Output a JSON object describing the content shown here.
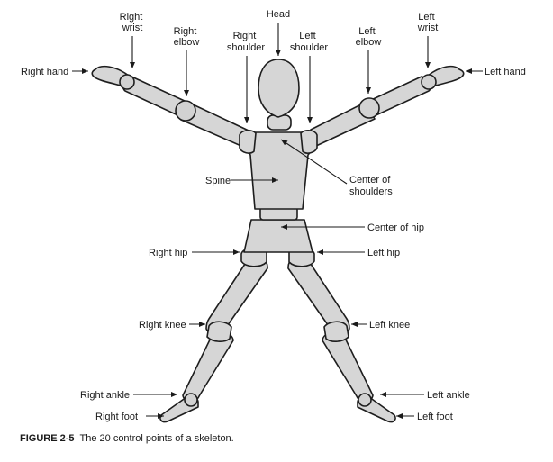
{
  "labels": {
    "head": "Head",
    "right_wrist": [
      "Right",
      "wrist"
    ],
    "right_elbow": [
      "Right",
      "elbow"
    ],
    "right_shoulder": [
      "Right",
      "shoulder"
    ],
    "left_shoulder": [
      "Left",
      "shoulder"
    ],
    "left_elbow": [
      "Left",
      "elbow"
    ],
    "left_wrist": [
      "Left",
      "wrist"
    ],
    "right_hand": "Right hand",
    "left_hand": "Left hand",
    "spine": "Spine",
    "center_of_shoulders": [
      "Center of",
      "shoulders"
    ],
    "center_of_hip": "Center of hip",
    "right_hip": "Right hip",
    "left_hip": "Left hip",
    "right_knee": "Right knee",
    "left_knee": "Left knee",
    "right_ankle": "Right ankle",
    "left_ankle": "Left ankle",
    "right_foot": "Right foot",
    "left_foot": "Left foot"
  },
  "caption": {
    "figure_number": "FIGURE 2-5",
    "text": "The 20 control points of a skeleton."
  }
}
